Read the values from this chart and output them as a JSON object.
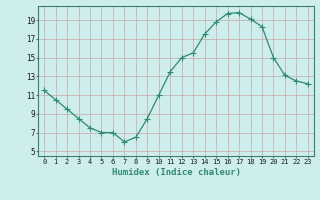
{
  "x": [
    0,
    1,
    2,
    3,
    4,
    5,
    6,
    7,
    8,
    9,
    10,
    11,
    12,
    13,
    14,
    15,
    16,
    17,
    18,
    19,
    20,
    21,
    22,
    23
  ],
  "y": [
    11.5,
    10.5,
    9.5,
    8.5,
    7.5,
    7.0,
    7.0,
    6.0,
    6.5,
    8.5,
    11.0,
    13.5,
    15.0,
    15.5,
    17.5,
    18.8,
    19.7,
    19.8,
    19.1,
    18.3,
    15.0,
    13.1,
    12.5,
    12.2
  ],
  "line_color": "#2e8b70",
  "marker": "P",
  "markersize": 2.0,
  "linewidth": 0.9,
  "bg_color": "#ceeeed",
  "grid_color_h": "#c8a8a8",
  "grid_color_v": "#c8a8a8",
  "xlabel": "Humidex (Indice chaleur)",
  "xlim": [
    -0.5,
    23.5
  ],
  "ylim": [
    4.5,
    20.5
  ],
  "xticks": [
    0,
    1,
    2,
    3,
    4,
    5,
    6,
    7,
    8,
    9,
    10,
    11,
    12,
    13,
    14,
    15,
    16,
    17,
    18,
    19,
    20,
    21,
    22,
    23
  ],
  "yticks": [
    5,
    7,
    9,
    11,
    13,
    15,
    17,
    19
  ],
  "xtick_fontsize": 5.0,
  "ytick_fontsize": 5.5,
  "xlabel_fontsize": 6.5
}
